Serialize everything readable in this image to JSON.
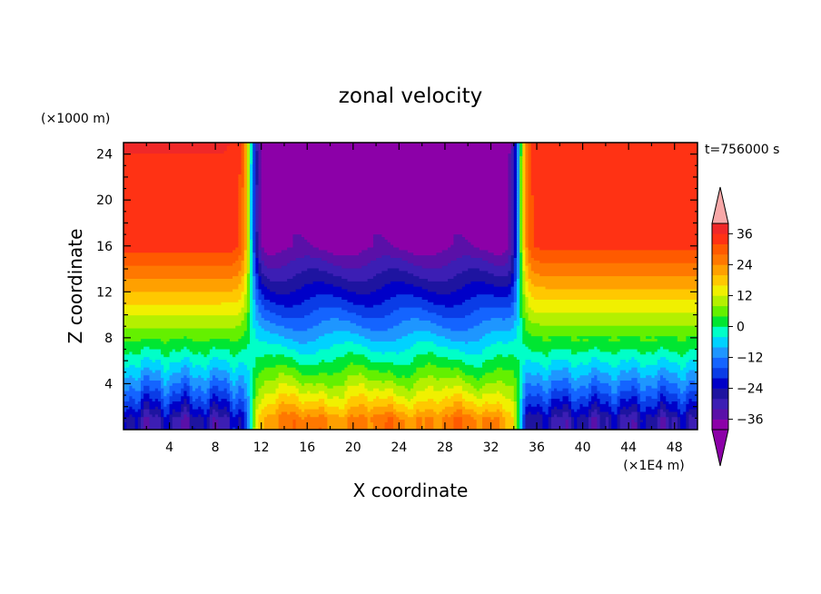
{
  "chart_data": {
    "type": "heatmap",
    "title": "zonal velocity",
    "xlabel": "X coordinate",
    "ylabel": "Z coordinate",
    "x_unit": "(×1E4 m)",
    "y_unit": "(×1000 m)",
    "time_label": "t=756000 s",
    "xlim": [
      0,
      50
    ],
    "ylim": [
      0,
      25
    ],
    "x_ticks": [
      "4",
      "8",
      "12",
      "16",
      "20",
      "24",
      "28",
      "32",
      "36",
      "40",
      "44",
      "48"
    ],
    "y_ticks": [
      "4",
      "8",
      "12",
      "16",
      "20",
      "24"
    ],
    "colorbar": {
      "levels": [
        -40,
        -36,
        -32,
        -28,
        -24,
        -20,
        -16,
        -12,
        -8,
        -4,
        0,
        4,
        8,
        12,
        16,
        20,
        24,
        28,
        32,
        36
      ],
      "tick_labels": [
        "36",
        "24",
        "12",
        "0",
        "−12",
        "−24",
        "−36"
      ],
      "tick_values": [
        36,
        24,
        12,
        0,
        -12,
        -24,
        -36
      ],
      "colors": [
        "#8c00a8",
        "#5a10a8",
        "#3c1eb4",
        "#1e14a0",
        "#0000c8",
        "#0a3ce6",
        "#1464ff",
        "#1e96ff",
        "#00d2ff",
        "#00ffc8",
        "#00e632",
        "#64f000",
        "#b4f000",
        "#f0f000",
        "#ffc800",
        "#ffa000",
        "#ff7800",
        "#ff5a00",
        "#ff3214",
        "#f02828"
      ],
      "under_color": "#8c00a8",
      "over_color": "#f8a8a8"
    },
    "grid": false,
    "legend": "right"
  }
}
